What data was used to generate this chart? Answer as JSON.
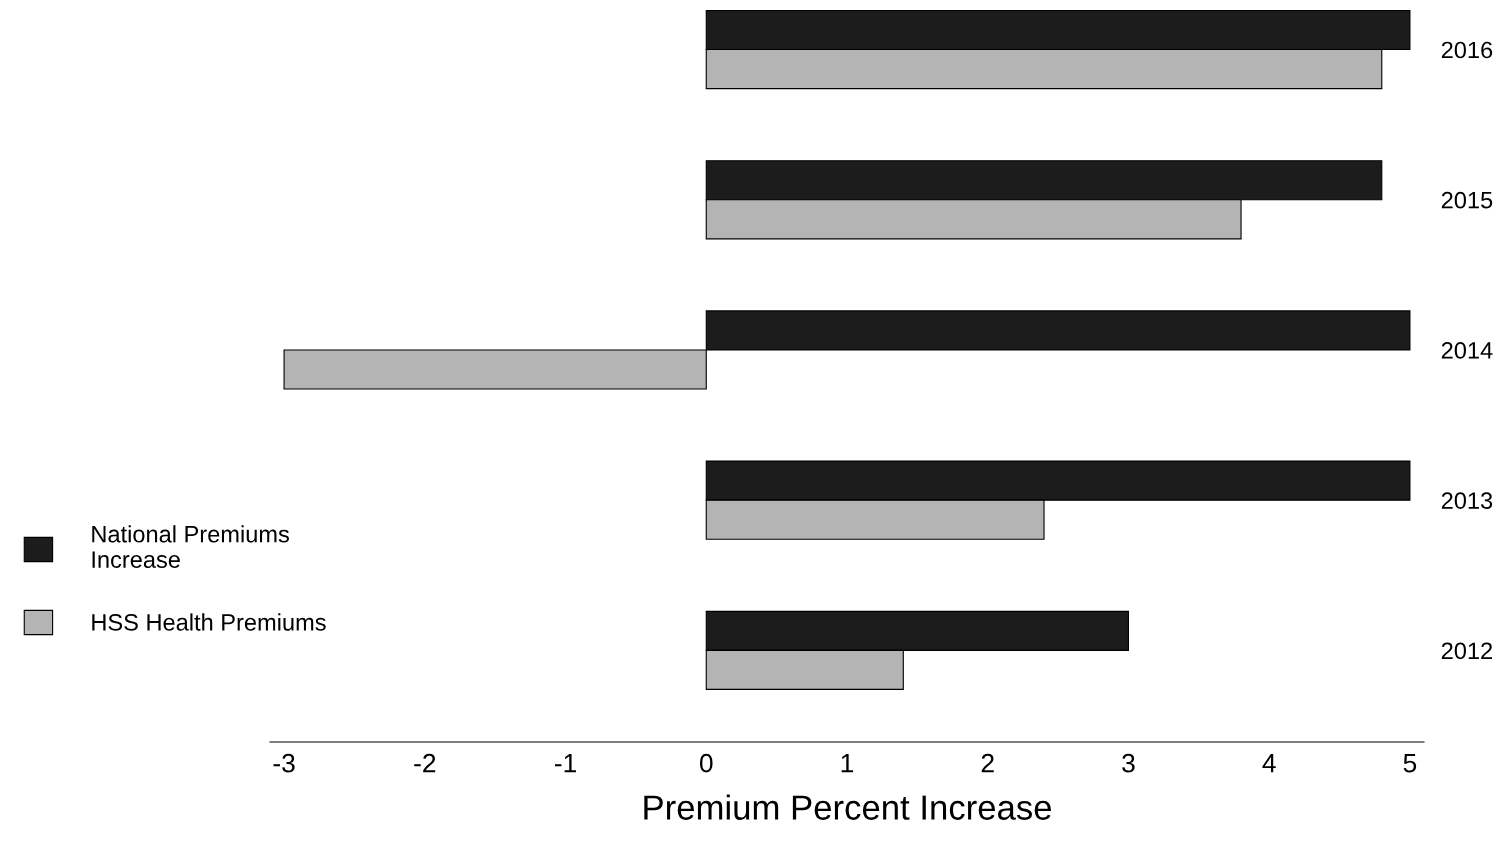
{
  "chart_data": {
    "type": "bar",
    "orientation": "horizontal",
    "xlabel": "Premium Percent Increase",
    "categories": [
      "2016",
      "2015",
      "2014",
      "2013",
      "2012"
    ],
    "series": [
      {
        "name": "National Premiums\nIncrease",
        "color": "#1c1c1c",
        "values": [
          5.0,
          4.8,
          5.0,
          5.0,
          3.0
        ]
      },
      {
        "name": "HSS Health Premiums",
        "color": "#b4b4b4",
        "values": [
          4.8,
          3.8,
          -3.0,
          2.4,
          1.4
        ]
      }
    ],
    "xlim": [
      -3.1,
      5.1
    ],
    "xticks": [
      -3,
      -2,
      -1,
      0,
      1,
      2,
      3,
      4,
      5
    ],
    "grid": false,
    "legend": "left"
  }
}
